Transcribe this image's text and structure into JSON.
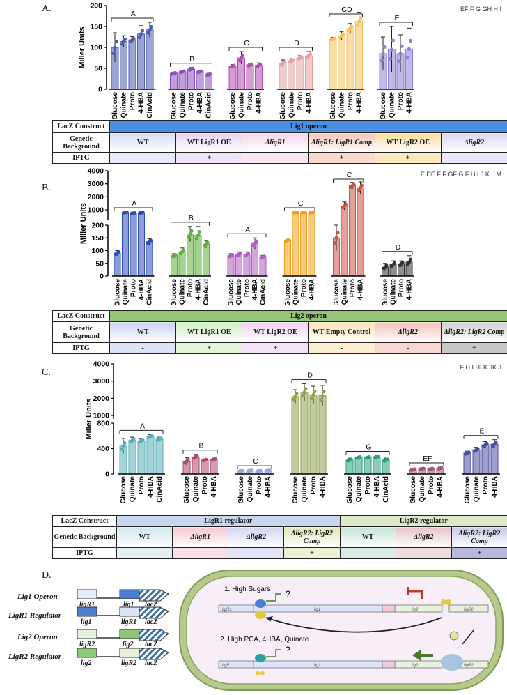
{
  "panels": {
    "A": {
      "label": "A."
    },
    "B": {
      "label": "B."
    },
    "C": {
      "label": "C."
    },
    "D": {
      "label": "D."
    }
  },
  "colors": {
    "lig1_header": "#4a90e2",
    "lig2_header": "#92c77a",
    "ligr1_header": "#c9d6f0",
    "ligr2_header": "#dbe9c4"
  },
  "tableA": {
    "row_labels": [
      "LacZ Construct",
      "Genetic Background",
      "IPTG"
    ],
    "header": "Lig1 operon",
    "backgrounds": [
      "WT",
      "WT LigR1 OE",
      "ΔligR1",
      "ΔligR1: LigR1 Comp",
      "WT LigR2 OE",
      "ΔligR2"
    ],
    "iptg": [
      "-",
      "+",
      "-",
      "+",
      "+",
      "-"
    ]
  },
  "tableB": {
    "row_labels": [
      "LacZ Construct",
      "Genetic Background",
      "IPTG"
    ],
    "header": "Lig2 operon",
    "backgrounds": [
      "WT",
      "WT LigR1 OE",
      "WT LigR2 OE",
      "WT Empty Control",
      "ΔligR2",
      "ΔligR2: LigR2 Comp"
    ],
    "iptg": [
      "-",
      "+",
      "+",
      "-",
      "-",
      "+"
    ]
  },
  "tableC": {
    "row_labels": [
      "LacZ Construct",
      "Genetic Background",
      "IPTG"
    ],
    "header1": "LigR1 regulator",
    "header2": "LigR2 regulator",
    "backgrounds": [
      "WT",
      "ΔligR1",
      "ΔligR2",
      "ΔligR2: LigR2 Comp",
      "WT",
      "ΔligR2",
      "ΔligR2: LigR2 Comp"
    ],
    "iptg": [
      "-",
      "-",
      "-",
      "+",
      "-",
      "-",
      "+"
    ]
  },
  "constructs": {
    "items": [
      {
        "name": "Lig1 Operon",
        "left": "ligR1",
        "gene": "lig1",
        "rep": "lacZ"
      },
      {
        "name": "LigR1 Regulator",
        "left": "lig1",
        "gene": "ligR1",
        "rep": "lacZ"
      },
      {
        "name": "Lig2 Operon",
        "left": "ligR2",
        "gene": "lig2",
        "rep": "lacZ"
      },
      {
        "name": "LigR2 Regulator",
        "left": "lig2",
        "gene": "ligR2",
        "rep": "lacZ"
      }
    ]
  },
  "model": {
    "cond1": "1.  High Sugars",
    "cond2": "2. High PCA, 4HBA, Quinate",
    "q": "?",
    "genes": [
      "ligR1",
      "lig1",
      "lig2",
      "ligR2"
    ]
  },
  "chart_data": [
    {
      "type": "bar",
      "ylabel": "Miller Units",
      "ylim": [
        0,
        200
      ],
      "yticks": [
        0,
        50,
        100,
        150,
        200
      ],
      "groups": [
        {
          "color": "#4a5bb0",
          "categories": [
            "Glucose",
            "Quinate",
            "Proto",
            "4-HBA",
            "CinAcid"
          ],
          "values": [
            100,
            114,
            118,
            132,
            142
          ],
          "errors": [
            35,
            14,
            8,
            20,
            18
          ]
        },
        {
          "color": "#8e4fc0",
          "categories": [
            "Glucose",
            "Quinate",
            "Proto",
            "4-HBA",
            "CinAcid"
          ],
          "values": [
            38,
            42,
            48,
            42,
            35
          ],
          "errors": [
            3,
            3,
            4,
            3,
            3
          ]
        },
        {
          "color": "#b04fb0",
          "categories": [
            "Glucose",
            "Quinate",
            "Proto",
            "4-HBA"
          ],
          "values": [
            55,
            75,
            58,
            57
          ],
          "errors": [
            4,
            15,
            4,
            6
          ]
        },
        {
          "color": "#e6a2a2",
          "categories": [
            "Glucose",
            "Quinate",
            "Proto",
            "4-HBA"
          ],
          "values": [
            62,
            68,
            75,
            80
          ],
          "errors": [
            8,
            5,
            5,
            10
          ]
        },
        {
          "color": "#f5bf5c",
          "categories": [
            "Glucose",
            "Quinate",
            "Proto",
            "4-HBA"
          ],
          "values": [
            120,
            128,
            145,
            162
          ],
          "errors": [
            4,
            10,
            12,
            22
          ]
        },
        {
          "color": "#8f7fd6",
          "categories": [
            "Glucose",
            "Quinate",
            "Proto",
            "4-HBA"
          ],
          "values": [
            85,
            95,
            85,
            96
          ],
          "errors": [
            40,
            55,
            45,
            50
          ]
        }
      ],
      "letters": [
        "A",
        "B",
        "C",
        "D",
        "CD",
        "E",
        "EF",
        "F",
        "G",
        "GH",
        "H",
        "I"
      ]
    },
    {
      "type": "bar",
      "ylabel": "Miller Units",
      "y_lower": [
        0,
        200
      ],
      "y_upper": [
        200,
        4000
      ],
      "yticks": [
        0,
        50,
        100,
        150,
        200,
        1000,
        2000,
        3000,
        4000
      ],
      "groups": [
        {
          "color": "#2f4fb0",
          "categories": [
            "Glucose",
            "Quinate",
            "Proto",
            "4-HBA",
            "CinAcid"
          ],
          "values": [
            90,
            800,
            750,
            780,
            135
          ],
          "errors": [
            10,
            40,
            40,
            40,
            12
          ]
        },
        {
          "color": "#5fb03a",
          "categories": [
            "Glucose",
            "Quinate",
            "Proto",
            "4-HBA",
            "CinAcid"
          ],
          "values": [
            80,
            95,
            165,
            160,
            125
          ],
          "errors": [
            8,
            15,
            30,
            35,
            15
          ]
        },
        {
          "color": "#b05fc0",
          "categories": [
            "Glucose",
            "Quinate",
            "Proto",
            "4-HBA",
            "CinAcid"
          ],
          "values": [
            80,
            85,
            85,
            128,
            75
          ],
          "errors": [
            8,
            10,
            10,
            22,
            6
          ]
        },
        {
          "color": "#f0a020",
          "categories": [
            "Glucose",
            "Quinate",
            "Proto",
            "4-HBA"
          ],
          "values": [
            140,
            800,
            800,
            790
          ],
          "errors": [
            5,
            40,
            40,
            40
          ]
        },
        {
          "color": "#d05040",
          "categories": [
            "Glucose",
            "Quinate",
            "Proto",
            "4-HBA"
          ],
          "values": [
            150,
            1300,
            2850,
            2700
          ],
          "errors": [
            50,
            300,
            250,
            450
          ]
        },
        {
          "color": "#333333",
          "categories": [
            "Glucose",
            "Quinate",
            "Proto",
            "4-HBA"
          ],
          "values": [
            35,
            45,
            48,
            55
          ],
          "errors": [
            15,
            15,
            12,
            25
          ]
        }
      ],
      "letters": [
        "A",
        "B",
        "A",
        "C",
        "C",
        "D",
        "E",
        "DE",
        "F",
        "F",
        "GF",
        "G",
        "F",
        "H",
        "I",
        "J",
        "K",
        "L",
        "M"
      ]
    },
    {
      "type": "bar",
      "ylabel": "Miller Units",
      "y_lower": [
        0,
        800
      ],
      "y_upper": [
        800,
        4000
      ],
      "yticks": [
        0,
        400,
        800,
        1000,
        2000,
        3000,
        4000
      ],
      "groups": [
        {
          "color": "#5ab0b8",
          "categories": [
            "Glucose",
            "Quinate",
            "Proto",
            "4-HBA",
            "CinAcid"
          ],
          "values": [
            440,
            530,
            520,
            590,
            550
          ],
          "errors": [
            120,
            50,
            30,
            30,
            30
          ]
        },
        {
          "color": "#b04a6a",
          "categories": [
            "Glucose",
            "Quinate",
            "Proto",
            "4-HBA"
          ],
          "values": [
            200,
            270,
            220,
            230
          ],
          "errors": [
            60,
            40,
            20,
            20
          ]
        },
        {
          "color": "#9fa4dc",
          "categories": [
            "Glucose",
            "Quinate",
            "Proto",
            "4-HBA"
          ],
          "values": [
            50,
            55,
            50,
            55
          ],
          "errors": [
            10,
            10,
            10,
            10
          ]
        },
        {
          "color": "#8ea050",
          "categories": [
            "Glucose",
            "Quinate",
            "Proto",
            "4-HBA"
          ],
          "values": [
            2100,
            2350,
            2200,
            2150
          ],
          "errors": [
            400,
            500,
            500,
            600
          ]
        },
        {
          "color": "#2aa080",
          "categories": [
            "Glucose",
            "Quinate",
            "Proto",
            "4-HBA",
            "CinAcid"
          ],
          "values": [
            220,
            260,
            260,
            270,
            220
          ],
          "errors": [
            30,
            20,
            20,
            20,
            30
          ]
        },
        {
          "color": "#a05a6a",
          "categories": [
            "Glucose",
            "Quinate",
            "Proto",
            "4-HBA"
          ],
          "values": [
            70,
            80,
            80,
            90
          ],
          "errors": [
            20,
            20,
            15,
            20
          ]
        },
        {
          "color": "#4e4ea0",
          "categories": [
            "Glucose",
            "Quinate",
            "Proto",
            "4-HBA"
          ],
          "values": [
            330,
            380,
            460,
            470
          ],
          "errors": [
            30,
            40,
            50,
            70
          ]
        }
      ],
      "letters": [
        "A",
        "B",
        "C",
        "D",
        "G",
        "EF",
        "E",
        "F",
        "H",
        "I",
        "HI",
        "K",
        "JK",
        "J"
      ]
    }
  ]
}
